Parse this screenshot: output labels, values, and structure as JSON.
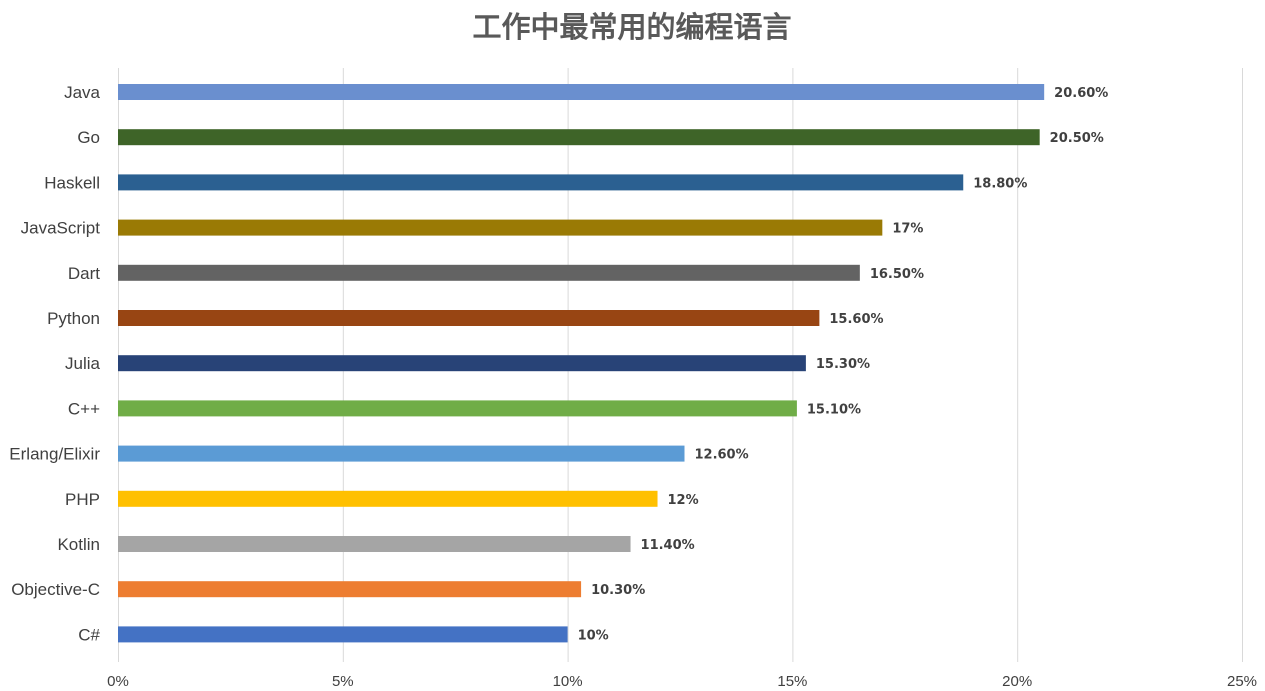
{
  "chart_data": {
    "type": "bar",
    "orientation": "horizontal",
    "title": "工作中最常用的编程语言",
    "xlabel": "",
    "ylabel": "",
    "xlim": [
      0,
      25
    ],
    "tick_values": [
      0,
      5,
      10,
      15,
      20,
      25
    ],
    "tick_labels": [
      "0%",
      "5%",
      "10%",
      "15%",
      "20%",
      "25%"
    ],
    "grid": true,
    "legend": "none",
    "categories": [
      "Java",
      "Go",
      "Haskell",
      "JavaScript",
      "Dart",
      "Python",
      "Julia",
      "C++",
      "Erlang/Elixir",
      "PHP",
      "Kotlin",
      "Objective-C",
      "C#"
    ],
    "values": [
      20.6,
      20.5,
      18.8,
      17,
      16.5,
      15.6,
      15.3,
      15.1,
      12.6,
      12,
      11.4,
      10.3,
      10
    ],
    "data_labels": [
      "20.60%",
      "20.50%",
      "18.80%",
      "17%",
      "16.50%",
      "15.60%",
      "15.30%",
      "15.10%",
      "12.60%",
      "12%",
      "11.40%",
      "10.30%",
      "10%"
    ],
    "colors": [
      "#6a8fcf",
      "#3e6428",
      "#2b6091",
      "#9a7a05",
      "#636363",
      "#984513",
      "#284377",
      "#70ad47",
      "#5b9bd5",
      "#ffc000",
      "#a5a5a5",
      "#ed7d31",
      "#4472c4"
    ]
  }
}
